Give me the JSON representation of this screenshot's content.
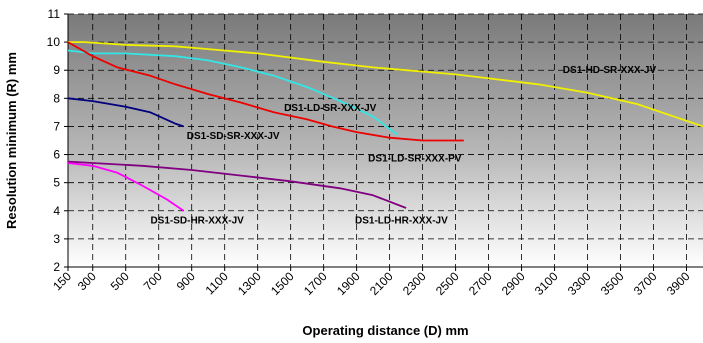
{
  "chart_data": {
    "type": "line",
    "xlabel": "Operating distance (D) mm",
    "ylabel": "Resolution minimum (R) mm",
    "xlim": [
      150,
      4000
    ],
    "ylim": [
      2,
      11
    ],
    "x_ticks": [
      150,
      300,
      500,
      700,
      900,
      1100,
      1300,
      1500,
      1700,
      1900,
      2100,
      2300,
      2500,
      2700,
      2900,
      3100,
      3300,
      3500,
      3700,
      3900
    ],
    "y_ticks": [
      2,
      3,
      4,
      5,
      6,
      7,
      8,
      9,
      10,
      11
    ],
    "grid": "dashed",
    "legend": "inline labels",
    "background": "gradient gray",
    "series": [
      {
        "name": "DS1-HD-SR-XXX-JV",
        "color": "#f0f000",
        "x": [
          150,
          250,
          500,
          800,
          1000,
          1300,
          1700,
          2000,
          2500,
          3000,
          3300,
          3600,
          4000
        ],
        "y": [
          10.0,
          10.0,
          9.9,
          9.85,
          9.75,
          9.6,
          9.3,
          9.1,
          8.85,
          8.5,
          8.2,
          7.8,
          7.0
        ]
      },
      {
        "name": "DS1-LD-SR-XXX-JV",
        "color": "#33e6e6",
        "x": [
          150,
          300,
          500,
          800,
          1000,
          1200,
          1400,
          1600,
          1800,
          2000,
          2150
        ],
        "y": [
          9.7,
          9.6,
          9.6,
          9.5,
          9.35,
          9.1,
          8.8,
          8.4,
          7.9,
          7.35,
          6.7
        ]
      },
      {
        "name": "DS1-LD-SR-XXX-PV",
        "color": "#ee0000",
        "x": [
          150,
          300,
          450,
          650,
          800,
          1000,
          1200,
          1400,
          1600,
          1750,
          1900,
          2100,
          2300,
          2500,
          2550
        ],
        "y": [
          10.0,
          9.5,
          9.1,
          8.8,
          8.5,
          8.15,
          7.85,
          7.5,
          7.25,
          7.0,
          6.8,
          6.6,
          6.5,
          6.5,
          6.5
        ]
      },
      {
        "name": "DS1-SD-SR-XXX-JV",
        "color": "#000080",
        "x": [
          150,
          300,
          500,
          650,
          800,
          850
        ],
        "y": [
          8.0,
          7.9,
          7.7,
          7.5,
          7.1,
          7.0
        ]
      },
      {
        "name": "DS1-LD-HR-XXX-JV",
        "color": "#800080",
        "x": [
          150,
          300,
          600,
          900,
          1200,
          1500,
          1800,
          2000,
          2200
        ],
        "y": [
          5.75,
          5.7,
          5.6,
          5.45,
          5.25,
          5.05,
          4.8,
          4.55,
          4.1
        ]
      },
      {
        "name": "DS1-SD-HR-XXX-JV",
        "color": "#ff00ff",
        "x": [
          150,
          300,
          450,
          600,
          750,
          850
        ],
        "y": [
          5.7,
          5.6,
          5.35,
          4.9,
          4.4,
          4.0
        ]
      }
    ],
    "annotations": [
      {
        "text": "DS1-HD-SR-XXX-JV",
        "x": 3150,
        "y": 8.9,
        "anchor": "start",
        "series": 0
      },
      {
        "text": "DS1-LD-SR-XXX-JV",
        "x": 1460,
        "y": 7.55,
        "anchor": "start",
        "series": 1
      },
      {
        "text": "DS1-LD-SR-XXX-PV",
        "x": 1970,
        "y": 5.75,
        "anchor": "start",
        "series": 2
      },
      {
        "text": "DS1-SD-SR-XXX-JV",
        "x": 870,
        "y": 6.55,
        "anchor": "start",
        "series": 3
      },
      {
        "text": "DS1-LD-HR-XXX-JV",
        "x": 1890,
        "y": 3.55,
        "anchor": "start",
        "series": 4
      },
      {
        "text": "DS1-SD-HR-XXX-JV",
        "x": 650,
        "y": 3.55,
        "anchor": "start",
        "series": 5
      }
    ]
  }
}
